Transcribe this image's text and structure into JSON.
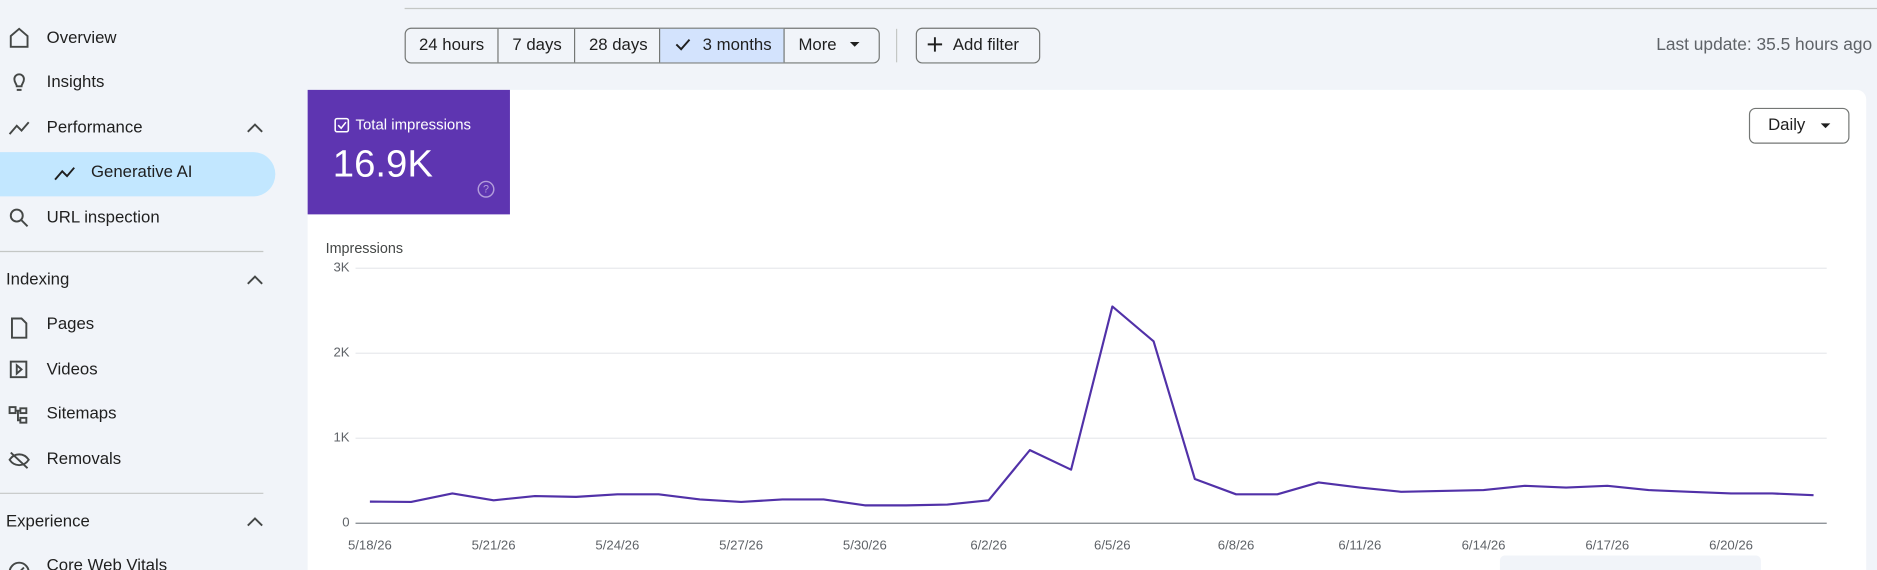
{
  "nav": {
    "items": [
      "Overview",
      "Insights",
      "Performance",
      "Generative AI",
      "URL inspection"
    ],
    "sections": [
      {
        "title": "Indexing",
        "items": [
          "Pages",
          "Videos",
          "Sitemaps",
          "Removals"
        ]
      },
      {
        "title": "Experience",
        "items": [
          "Core Web Vitals"
        ]
      }
    ]
  },
  "toolbar": {
    "ranges": [
      "24 hours",
      "7 days",
      "28 days",
      "3 months",
      "More"
    ],
    "add_filter": "Add filter",
    "last_update": "Last update: 35.5 hours ago"
  },
  "metric": {
    "label": "Total impressions",
    "value": "16.9K"
  },
  "granularity": "Daily",
  "chart_data": {
    "type": "line",
    "y_label": "Impressions",
    "color": "#5131a8",
    "grid": true,
    "categories": [
      "5/18/26",
      null,
      null,
      "5/21/26",
      null,
      null,
      "5/24/26",
      null,
      null,
      "5/27/26",
      null,
      null,
      "5/30/26",
      null,
      null,
      "6/2/26",
      null,
      null,
      "6/5/26",
      null,
      null,
      "6/8/26",
      null,
      null,
      "6/11/26",
      null,
      null,
      "6/14/26",
      null,
      null,
      "6/17/26",
      null,
      null,
      "6/20/26",
      null,
      null
    ],
    "values": [
      254,
      250,
      350,
      270,
      320,
      310,
      340,
      340,
      280,
      250,
      280,
      280,
      210,
      210,
      220,
      270,
      860,
      630,
      2550,
      2140,
      520,
      340,
      340,
      480,
      420,
      370,
      380,
      390,
      440,
      420,
      440,
      390,
      370,
      350,
      350,
      330
    ],
    "ylim": [
      0,
      3000
    ],
    "yticks": [
      {
        "value": 0,
        "label": "0"
      },
      {
        "value": 1000,
        "label": "1K"
      },
      {
        "value": 2000,
        "label": "2K"
      },
      {
        "value": 3000,
        "label": "3K"
      }
    ]
  }
}
